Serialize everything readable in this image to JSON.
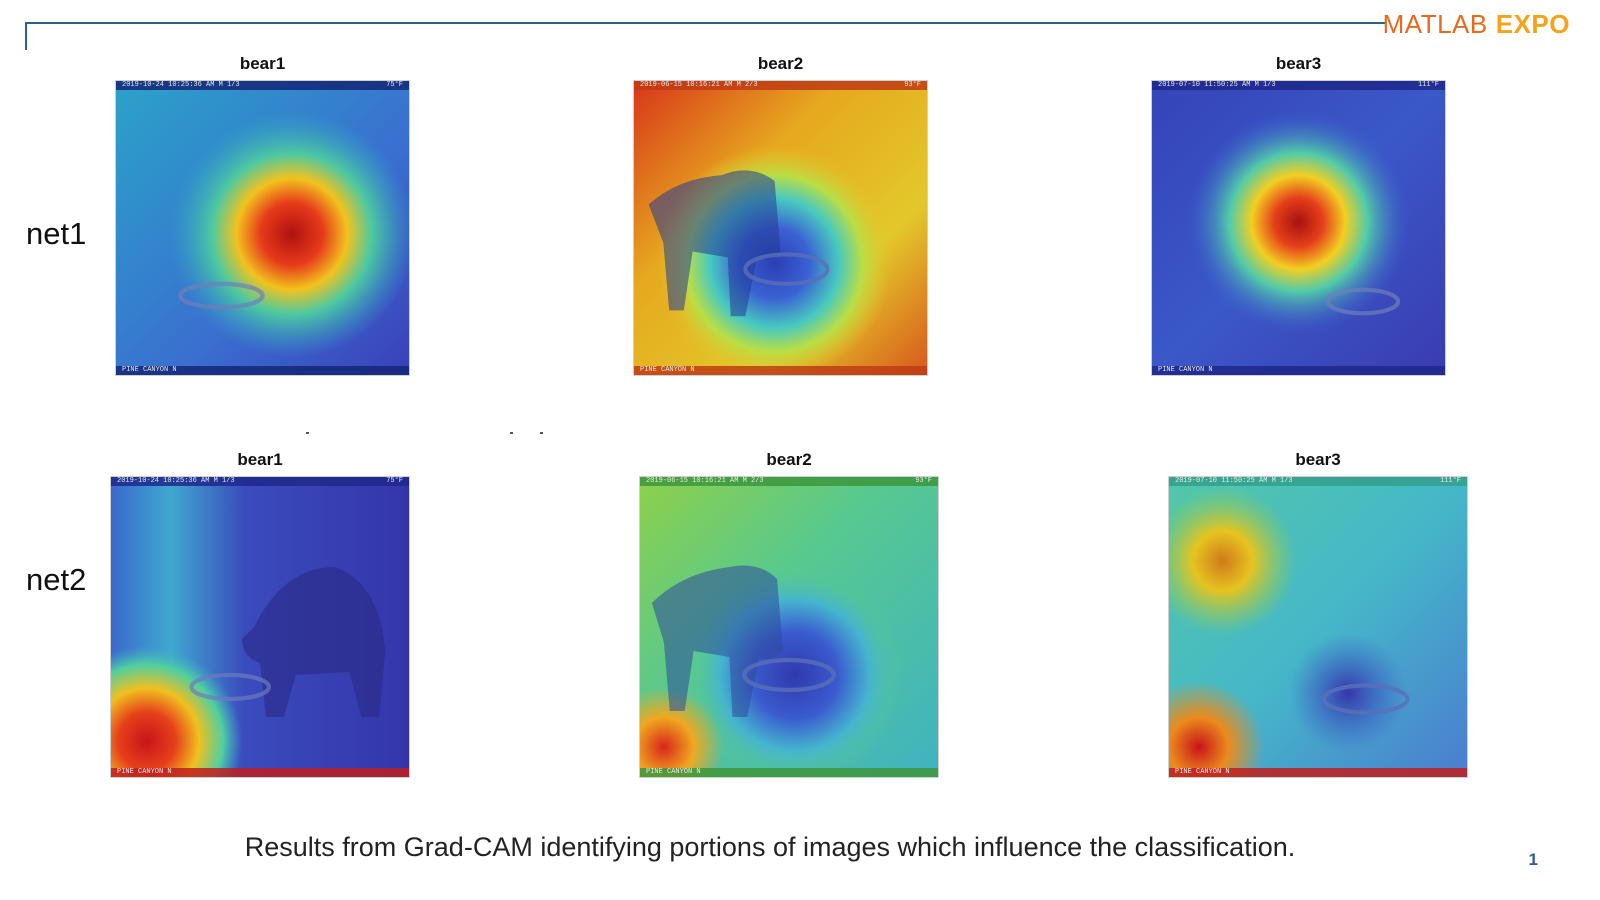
{
  "header": {
    "logo_matlab": "MATLAB",
    "logo_expo": "EXPO"
  },
  "rows": [
    {
      "label": "net1",
      "panels": [
        {
          "title": "bear1",
          "stamp_top_left": "2019-10-24 10:25:36 AM  M 1/3",
          "stamp_top_right": "75°F",
          "stamp_bottom": "PINE CANYON N"
        },
        {
          "title": "bear2",
          "stamp_top_left": "2019-06-15 10:16:21 AM  M 2/3",
          "stamp_top_right": "93°F",
          "stamp_bottom": "PINE CANYON N"
        },
        {
          "title": "bear3",
          "stamp_top_left": "2019-07-10 11:50:25 AM  M 1/3",
          "stamp_top_right": "111°F",
          "stamp_bottom": "PINE CANYON N"
        }
      ]
    },
    {
      "label": "net2",
      "panels": [
        {
          "title": "bear1",
          "stamp_top_left": "2019-10-24 10:25:36 AM  M 1/3",
          "stamp_top_right": "75°F",
          "stamp_bottom": "PINE CANYON N"
        },
        {
          "title": "bear2",
          "stamp_top_left": "2019-06-15 10:16:21 AM  M 2/3",
          "stamp_top_right": "93°F",
          "stamp_bottom": "PINE CANYON N"
        },
        {
          "title": "bear3",
          "stamp_top_left": "2019-07-10 11:50:25 AM  M 1/3",
          "stamp_top_right": "111°F",
          "stamp_bottom": "PINE CANYON N"
        }
      ]
    }
  ],
  "caption": "Results from Grad-CAM identifying portions of images which influence the classification.",
  "page_number": "1",
  "colors": {
    "accent": "#2b5f8f",
    "logo_orange": "#e86a1c",
    "logo_yellow": "#f7a21b"
  }
}
